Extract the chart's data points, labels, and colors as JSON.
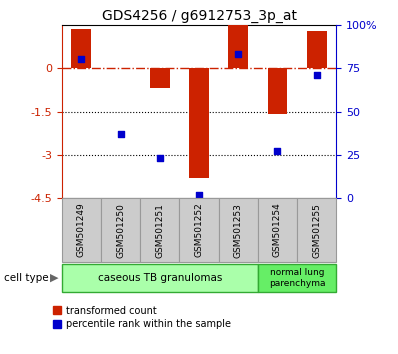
{
  "title": "GDS4256 / g6912753_3p_at",
  "samples": [
    "GSM501249",
    "GSM501250",
    "GSM501251",
    "GSM501252",
    "GSM501253",
    "GSM501254",
    "GSM501255"
  ],
  "transformed_count": [
    1.35,
    0.02,
    -0.7,
    -3.8,
    1.5,
    -1.6,
    1.3
  ],
  "percentile_rank": [
    80,
    37,
    23,
    2,
    83,
    27,
    71
  ],
  "ylim_left": [
    -4.5,
    1.5
  ],
  "yticks_left": [
    0,
    -1.5,
    -3,
    -4.5
  ],
  "ytick_labels_left": [
    "0",
    "-1.5",
    "-3",
    "-4.5"
  ],
  "ylim_right": [
    0,
    100
  ],
  "yticks_right": [
    0,
    25,
    50,
    75,
    100
  ],
  "ytick_labels_right": [
    "0",
    "25",
    "50",
    "75",
    "100%"
  ],
  "bar_color": "#cc2200",
  "dot_color": "#0000cc",
  "hline_color": "#cc2200",
  "dotline1": -1.5,
  "dotline2": -3.0,
  "group1_label": "caseous TB granulomas",
  "group2_label": "normal lung\nparenchyma",
  "group1_color": "#aaffaa",
  "group2_color": "#66ee66",
  "cell_type_label": "cell type",
  "legend1_label": "transformed count",
  "legend2_label": "percentile rank within the sample",
  "bar_width": 0.5
}
